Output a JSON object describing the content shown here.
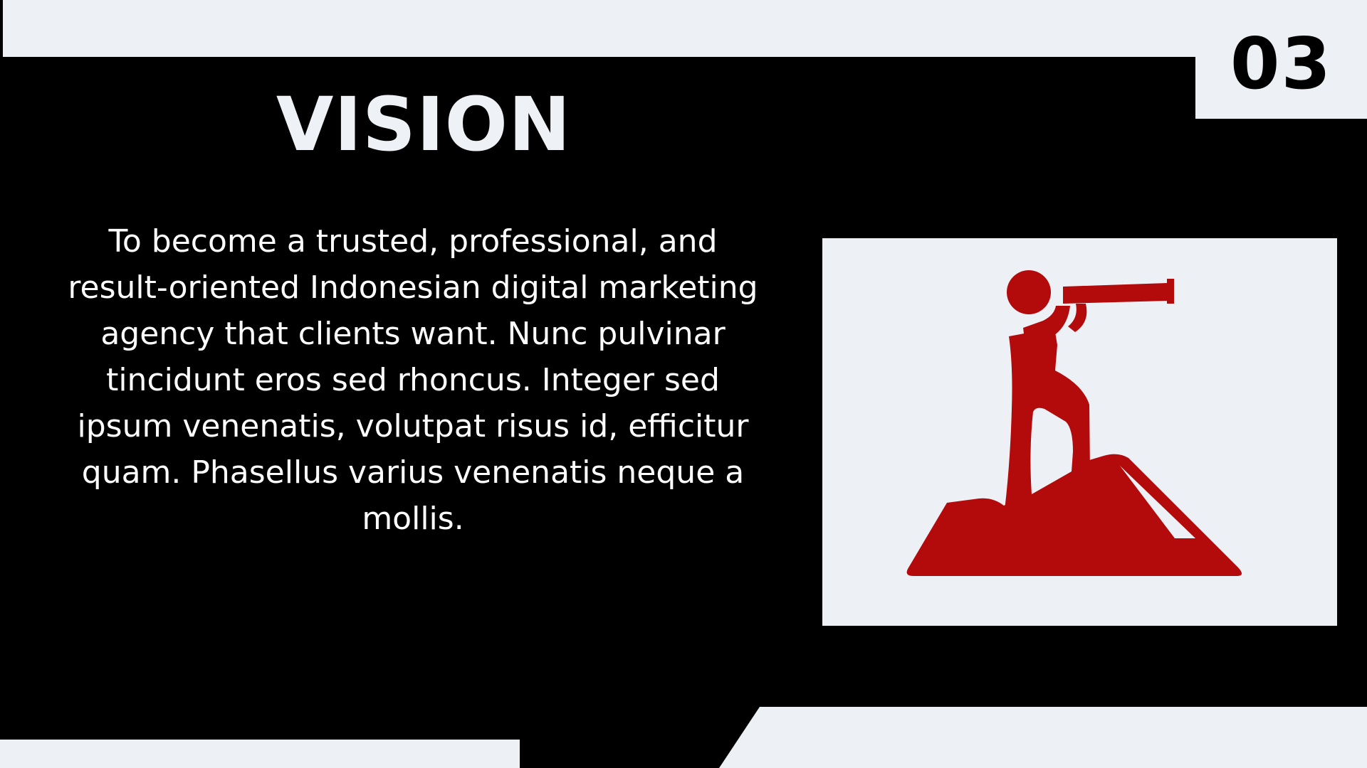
{
  "slide": {
    "page_number": "03",
    "title": "VISION",
    "body": "To become a trusted, professional, and result-oriented Indonesian digital marketing agency that clients want. Nunc pulvinar tincidunt eros sed rhoncus. Integer sed ipsum venenatis, volutpat risus id, efficitur quam. Phasellus varius venenatis neque a mollis."
  },
  "icons": {
    "illustration": "person-with-telescope-on-hill-icon"
  },
  "colors": {
    "background": "#000000",
    "light": "#edf1f6",
    "accent": "#b30b0b",
    "text": "#ffffff"
  }
}
